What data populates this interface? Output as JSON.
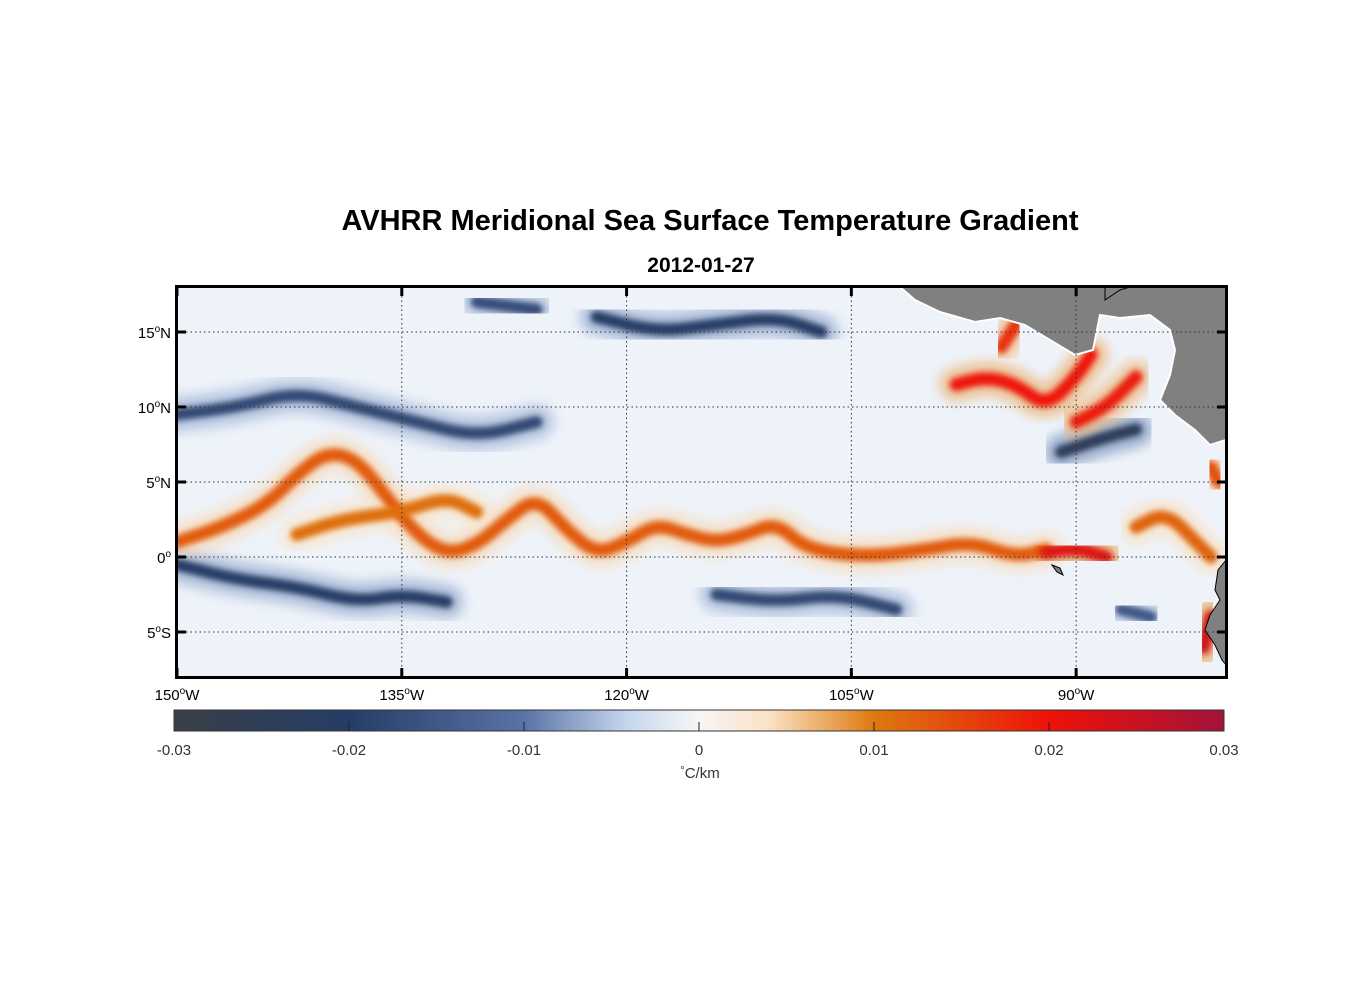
{
  "title": "AVHRR Meridional Sea Surface Temperature Gradient",
  "subtitle": "2012-01-27",
  "map": {
    "lon_range": [
      -150,
      -80
    ],
    "lat_range": [
      -8,
      18
    ],
    "grid": "dotted",
    "lon_ticks": [
      {
        "value": -150,
        "label": "150",
        "sup": "o",
        "dir": "W"
      },
      {
        "value": -135,
        "label": "135",
        "sup": "o",
        "dir": "W"
      },
      {
        "value": -120,
        "label": "120",
        "sup": "o",
        "dir": "W"
      },
      {
        "value": -105,
        "label": "105",
        "sup": "o",
        "dir": "W"
      },
      {
        "value": -90,
        "label": "90",
        "sup": "o",
        "dir": "W"
      }
    ],
    "lat_ticks": [
      {
        "value": 15,
        "label": "15",
        "sup": "o",
        "dir": "N"
      },
      {
        "value": 10,
        "label": "10",
        "sup": "o",
        "dir": "N"
      },
      {
        "value": 5,
        "label": "5",
        "sup": "o",
        "dir": "N"
      },
      {
        "value": 0,
        "label": "0",
        "sup": "o",
        "dir": ""
      },
      {
        "value": -5,
        "label": "5",
        "sup": "o",
        "dir": "S"
      }
    ],
    "land_color": "#808080",
    "fronts": [
      {
        "name": "equatorial-front",
        "value": 0.013,
        "path": [
          [
            -150,
            1.0
          ],
          [
            -147,
            2.0
          ],
          [
            -144,
            3.5
          ],
          [
            -142,
            5.5
          ],
          [
            -140,
            7.0
          ],
          [
            -138,
            6.5
          ],
          [
            -136,
            4.0
          ],
          [
            -134,
            1.5
          ],
          [
            -132,
            0.2
          ],
          [
            -130,
            0.8
          ],
          [
            -128,
            2.5
          ],
          [
            -126,
            4.0
          ],
          [
            -124,
            1.8
          ],
          [
            -122,
            0.2
          ],
          [
            -120,
            1.0
          ],
          [
            -118,
            2.2
          ],
          [
            -116,
            1.5
          ],
          [
            -114,
            1.0
          ],
          [
            -112,
            1.5
          ],
          [
            -110,
            2.3
          ],
          [
            -108,
            0.5
          ],
          [
            -104,
            0.0
          ],
          [
            -100,
            0.5
          ],
          [
            -97,
            1.0
          ],
          [
            -94,
            0.0
          ],
          [
            -92,
            0.5
          ]
        ]
      },
      {
        "name": "equatorial-front-north",
        "value": 0.011,
        "path": [
          [
            -142,
            1.5
          ],
          [
            -139,
            2.5
          ],
          [
            -135,
            3.0
          ],
          [
            -132,
            4.0
          ],
          [
            -130,
            3.0
          ]
        ]
      },
      {
        "name": "galapagos-front",
        "value": 0.022,
        "path": [
          [
            -92,
            0.3
          ],
          [
            -90,
            0.6
          ],
          [
            -88,
            0.0
          ]
        ]
      },
      {
        "name": "papagayo-front",
        "value": 0.02,
        "path": [
          [
            -98,
            11.5
          ],
          [
            -96,
            12.0
          ],
          [
            -94,
            11.5
          ],
          [
            -92,
            10.0
          ],
          [
            -90,
            12.0
          ],
          [
            -89,
            13.5
          ]
        ]
      },
      {
        "name": "papagayo-front-2",
        "value": 0.019,
        "path": [
          [
            -90,
            9.0
          ],
          [
            -88,
            10.0
          ],
          [
            -86,
            12.0
          ]
        ]
      },
      {
        "name": "tehuantepec-front",
        "value": 0.017,
        "path": [
          [
            -95,
            14.0
          ],
          [
            -94,
            15.5
          ]
        ]
      },
      {
        "name": "coastal-front-east",
        "value": 0.012,
        "path": [
          [
            -86,
            2.0
          ],
          [
            -84,
            3.0
          ],
          [
            -82,
            1.0
          ],
          [
            -81,
            0.0
          ]
        ]
      },
      {
        "name": "peru-front",
        "value": 0.024,
        "path": [
          [
            -81,
            -4.0
          ],
          [
            -81.5,
            -6.0
          ]
        ]
      },
      {
        "name": "colombia-front",
        "value": 0.014,
        "path": [
          [
            -81,
            6.0
          ],
          [
            -80.5,
            5.0
          ]
        ]
      }
    ],
    "cold_bands": [
      {
        "name": "south-cold-band",
        "value": -0.02,
        "path": [
          [
            -150,
            -0.5
          ],
          [
            -146,
            -1.5
          ],
          [
            -142,
            -2.0
          ],
          [
            -138,
            -3.0
          ],
          [
            -135,
            -2.5
          ],
          [
            -132,
            -3.0
          ]
        ]
      },
      {
        "name": "south-cold-band-2",
        "value": -0.018,
        "path": [
          [
            -114,
            -2.5
          ],
          [
            -110,
            -3.0
          ],
          [
            -106,
            -2.5
          ],
          [
            -102,
            -3.5
          ]
        ]
      },
      {
        "name": "north-cold-band",
        "value": -0.018,
        "path": [
          [
            -150,
            9.5
          ],
          [
            -146,
            10.0
          ],
          [
            -142,
            11.0
          ],
          [
            -138,
            10.0
          ],
          [
            -134,
            9.0
          ],
          [
            -130,
            8.0
          ],
          [
            -126,
            9.0
          ]
        ]
      },
      {
        "name": "north-cold-band-2",
        "value": -0.02,
        "path": [
          [
            -122,
            16.0
          ],
          [
            -118,
            15.0
          ],
          [
            -114,
            15.5
          ],
          [
            -110,
            16.0
          ],
          [
            -107,
            15.0
          ]
        ]
      },
      {
        "name": "cold-eddy-east",
        "value": -0.024,
        "path": [
          [
            -91,
            7.0
          ],
          [
            -88,
            8.0
          ],
          [
            -86,
            8.5
          ]
        ]
      },
      {
        "name": "cold-eddy-ne",
        "value": -0.017,
        "path": [
          [
            -130,
            17.0
          ],
          [
            -126,
            16.5
          ]
        ]
      },
      {
        "name": "cold-eddy-south",
        "value": -0.015,
        "path": [
          [
            -87,
            -3.5
          ],
          [
            -85,
            -4.0
          ]
        ]
      }
    ]
  },
  "colorbar": {
    "min": -0.03,
    "max": 0.03,
    "ticks": [
      {
        "value": -0.03,
        "label": "-0.03"
      },
      {
        "value": -0.02,
        "label": "-0.02"
      },
      {
        "value": -0.01,
        "label": "-0.01"
      },
      {
        "value": 0,
        "label": "0"
      },
      {
        "value": 0.01,
        "label": "0.01"
      },
      {
        "value": 0.02,
        "label": "0.02"
      },
      {
        "value": 0.03,
        "label": "0.03"
      }
    ],
    "unit_symbol": "°",
    "unit_text": "C/km",
    "stops": [
      {
        "value": -0.03,
        "color": "#3a3f47"
      },
      {
        "value": -0.02,
        "color": "#253d66"
      },
      {
        "value": -0.01,
        "color": "#5a73a6"
      },
      {
        "value": -0.004,
        "color": "#c7d8ef"
      },
      {
        "value": 0,
        "color": "#f6f6f6"
      },
      {
        "value": 0.004,
        "color": "#fbe2c4"
      },
      {
        "value": 0.01,
        "color": "#dc7a10"
      },
      {
        "value": 0.02,
        "color": "#ee1209"
      },
      {
        "value": 0.03,
        "color": "#a3133a"
      }
    ]
  }
}
